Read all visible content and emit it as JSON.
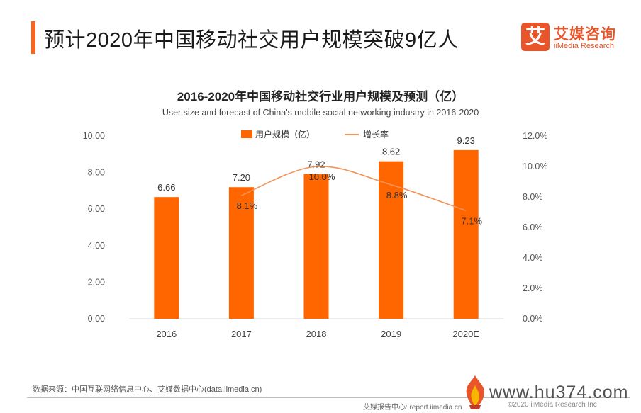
{
  "header": {
    "title": "预计2020年中国移动社交用户规模突破9亿人",
    "accent_color": "#f26522"
  },
  "logo": {
    "mark": "艾",
    "name_cn": "艾媒咨询",
    "name_en": "iiMedia Research",
    "color": "#e8552a"
  },
  "chart_data": {
    "type": "bar",
    "title": "2016-2020年中国移动社交行业用户规模及预测（亿）",
    "subtitle": "User size and forecast of China's mobile social  networking industry in 2016-2020",
    "categories": [
      "2016",
      "2017",
      "2018",
      "2019",
      "2020E"
    ],
    "series": [
      {
        "name": "用户规模（亿）",
        "kind": "bar",
        "axis": "left",
        "values": [
          6.66,
          7.2,
          7.92,
          8.62,
          9.23
        ],
        "labels": [
          "6.66",
          "7.20",
          "7.92",
          "8.62",
          "9.23"
        ],
        "color": "#ff6600"
      },
      {
        "name": "增长率",
        "kind": "line",
        "axis": "right",
        "values": [
          null,
          8.1,
          10.0,
          8.8,
          7.1
        ],
        "labels": [
          "",
          "8.1%",
          "10.0%",
          "8.8%",
          "7.1%"
        ],
        "color": "#f4935a"
      }
    ],
    "y_left": {
      "range": [
        0,
        10
      ],
      "ticks": [
        "0.00",
        "2.00",
        "4.00",
        "6.00",
        "8.00",
        "10.00"
      ]
    },
    "y_right": {
      "range": [
        0,
        12
      ],
      "ticks": [
        "0.0%",
        "2.0%",
        "4.0%",
        "6.0%",
        "8.0%",
        "10.0%",
        "12.0%"
      ]
    },
    "legend_position": "top-center",
    "grid": false
  },
  "footer": {
    "source": "数据来源：中国互联网络信息中心、艾媒数据中心(data.iimedia.cn)",
    "report_site": "艾媒报告中心: report.iimedia.cn",
    "copyright": "©2020  iiMedia Research  Inc",
    "watermark": "www.hu374.com"
  }
}
